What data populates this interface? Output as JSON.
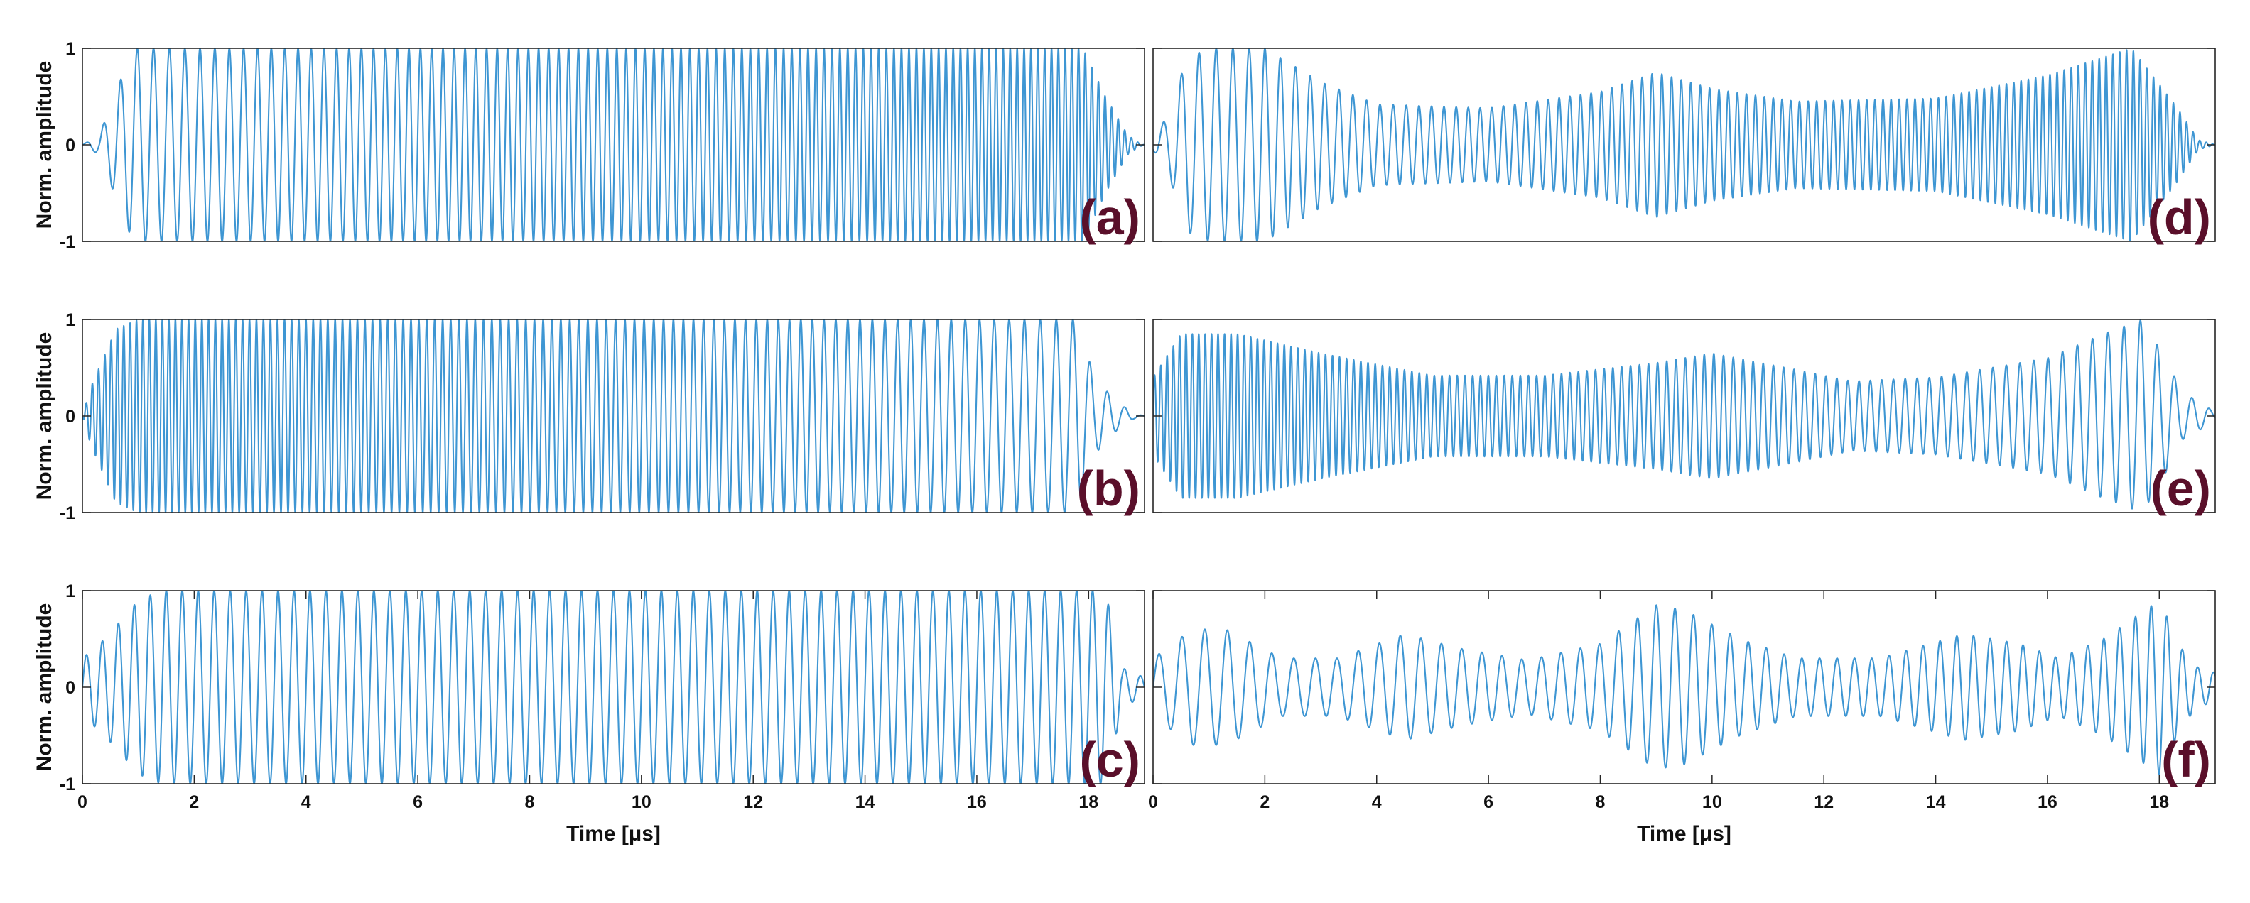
{
  "chart_data": [
    {
      "type": "line",
      "panel_label": "(a)",
      "ylabel": "Norm. amplitude",
      "xlabel": "",
      "xlim": [
        0,
        19
      ],
      "ylim": [
        -1,
        1
      ],
      "yticks": [
        "-1",
        "0",
        "1"
      ],
      "xticks": [],
      "series": [
        {
          "signal": "chirp",
          "color": "#3e96d3",
          "f_start_cycles_per_us": 3.2,
          "f_end_cycles_per_us": 8.5,
          "t_on_us": 0.3,
          "t_off_us": 18.3,
          "envelope": [
            [
              0,
              0
            ],
            [
              0.3,
              0.1
            ],
            [
              0.5,
              0.4
            ],
            [
              0.9,
              1.0
            ],
            [
              17.9,
              1.0
            ],
            [
              18.3,
              0.5
            ],
            [
              18.7,
              0.1
            ],
            [
              18.9,
              0.02
            ],
            [
              19,
              0
            ]
          ]
        }
      ]
    },
    {
      "type": "line",
      "panel_label": "(b)",
      "ylabel": "Norm. amplitude",
      "xlabel": "",
      "xlim": [
        0,
        19
      ],
      "ylim": [
        -1,
        1
      ],
      "yticks": [
        "-1",
        "0",
        "1"
      ],
      "xticks": [],
      "series": [
        {
          "signal": "chirp",
          "color": "#3e96d3",
          "f_start_cycles_per_us": 9.0,
          "f_end_cycles_per_us": 3.2,
          "t_on_us": 0.15,
          "t_off_us": 18.1,
          "envelope": [
            [
              0,
              0
            ],
            [
              0.15,
              0.3
            ],
            [
              0.6,
              0.9
            ],
            [
              1.0,
              1.0
            ],
            [
              17.8,
              1.0
            ],
            [
              18.1,
              0.4
            ],
            [
              18.5,
              0.15
            ],
            [
              18.8,
              0.03
            ],
            [
              19,
              0
            ]
          ]
        }
      ]
    },
    {
      "type": "line",
      "panel_label": "(c)",
      "ylabel": "Norm. amplitude",
      "xlabel": "Time [μs]",
      "xlim": [
        0,
        19
      ],
      "ylim": [
        -1,
        1
      ],
      "yticks": [
        "-1",
        "0",
        "1"
      ],
      "xticks": [
        "0",
        "2",
        "4",
        "6",
        "8",
        "10",
        "12",
        "14",
        "16",
        "18"
      ],
      "series": [
        {
          "signal": "chirp",
          "color": "#3e96d3",
          "f_start_cycles_per_us": 3.5,
          "f_end_cycles_per_us": 3.5,
          "t_on_us": 0.0,
          "t_off_us": 18.6,
          "envelope": [
            [
              0,
              0.3
            ],
            [
              0.4,
              0.5
            ],
            [
              1.0,
              0.9
            ],
            [
              1.4,
              1.0
            ],
            [
              18.3,
              1.0
            ],
            [
              18.6,
              0.2
            ],
            [
              19,
              0.1
            ]
          ]
        }
      ]
    },
    {
      "type": "line",
      "panel_label": "(d)",
      "ylabel": "",
      "xlabel": "",
      "xlim": [
        0,
        19
      ],
      "ylim": [
        -1,
        1
      ],
      "yticks": [],
      "xticks": [],
      "series": [
        {
          "signal": "chirp",
          "color": "#3e96d3",
          "f_start_cycles_per_us": 3.0,
          "f_end_cycles_per_us": 8.5,
          "t_on_us": 0.1,
          "t_off_us": 18.3,
          "envelope": [
            [
              0,
              0.05
            ],
            [
              0.3,
              0.35
            ],
            [
              0.6,
              0.9
            ],
            [
              1.0,
              1.0
            ],
            [
              2.0,
              1.0
            ],
            [
              3.0,
              0.65
            ],
            [
              4.0,
              0.42
            ],
            [
              6.0,
              0.38
            ],
            [
              8.0,
              0.55
            ],
            [
              9.0,
              0.75
            ],
            [
              10.0,
              0.58
            ],
            [
              11.5,
              0.45
            ],
            [
              14.0,
              0.48
            ],
            [
              16.0,
              0.72
            ],
            [
              17.5,
              1.0
            ],
            [
              18.3,
              0.4
            ],
            [
              18.7,
              0.05
            ],
            [
              19,
              0
            ]
          ]
        }
      ]
    },
    {
      "type": "line",
      "panel_label": "(e)",
      "ylabel": "",
      "xlabel": "",
      "xlim": [
        0,
        19
      ],
      "ylim": [
        -1,
        1
      ],
      "yticks": [],
      "xticks": [],
      "series": [
        {
          "signal": "chirp",
          "color": "#3e96d3",
          "f_start_cycles_per_us": 9.0,
          "f_end_cycles_per_us": 3.2,
          "t_on_us": 0.0,
          "t_off_us": 18.2,
          "envelope": [
            [
              0,
              0.4
            ],
            [
              0.5,
              0.85
            ],
            [
              1.5,
              0.85
            ],
            [
              3.0,
              0.65
            ],
            [
              5.0,
              0.42
            ],
            [
              7.0,
              0.42
            ],
            [
              9.0,
              0.55
            ],
            [
              10.0,
              0.65
            ],
            [
              11.5,
              0.48
            ],
            [
              12.5,
              0.36
            ],
            [
              14.0,
              0.4
            ],
            [
              16.0,
              0.6
            ],
            [
              17.0,
              0.85
            ],
            [
              17.7,
              1.0
            ],
            [
              18.2,
              0.5
            ],
            [
              18.4,
              0.25
            ],
            [
              18.8,
              0.12
            ],
            [
              19,
              0.03
            ]
          ]
        }
      ]
    },
    {
      "type": "line",
      "panel_label": "(f)",
      "ylabel": "",
      "xlabel": "Time [μs]",
      "xlim": [
        0,
        19
      ],
      "ylim": [
        -1,
        1
      ],
      "yticks": [],
      "xticks": [
        "0",
        "2",
        "4",
        "6",
        "8",
        "10",
        "12",
        "14",
        "16",
        "18"
      ],
      "series": [
        {
          "signal": "chirp",
          "color": "#3e96d3",
          "f_start_cycles_per_us": 2.4,
          "f_end_cycles_per_us": 3.6,
          "t_on_us": 0.0,
          "t_off_us": 18.4,
          "envelope": [
            [
              0,
              0.3
            ],
            [
              0.7,
              0.6
            ],
            [
              1.3,
              0.6
            ],
            [
              2.3,
              0.3
            ],
            [
              3.3,
              0.3
            ],
            [
              4.5,
              0.55
            ],
            [
              5.5,
              0.4
            ],
            [
              6.7,
              0.28
            ],
            [
              8.0,
              0.45
            ],
            [
              9.0,
              0.85
            ],
            [
              9.5,
              0.8
            ],
            [
              10.5,
              0.5
            ],
            [
              11.5,
              0.3
            ],
            [
              13.0,
              0.3
            ],
            [
              14.5,
              0.55
            ],
            [
              15.5,
              0.45
            ],
            [
              16.2,
              0.3
            ],
            [
              17.0,
              0.5
            ],
            [
              18.0,
              0.9
            ],
            [
              18.4,
              0.4
            ],
            [
              18.7,
              0.2
            ],
            [
              19,
              0.15
            ]
          ]
        }
      ]
    }
  ]
}
